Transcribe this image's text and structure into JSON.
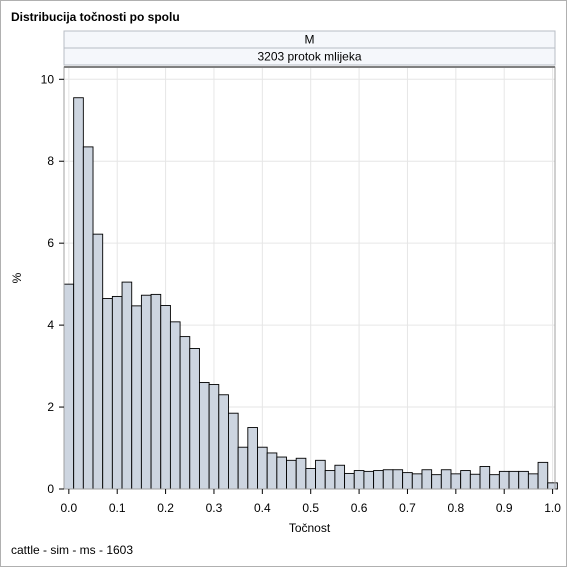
{
  "title": "Distribucija točnosti po spolu",
  "footnote": "cattle - sim - ms - 1603",
  "colors": {
    "bar_fill": "#cdd5e0",
    "bar_stroke": "#000000",
    "grid": "#e6e6e6",
    "strip_fill": "#f5f7fb",
    "frame": "#a0a0a0"
  },
  "chart_data": {
    "type": "bar",
    "panel_labels": [
      "M",
      "3203 protok mlijeka"
    ],
    "xlabel": "Točnost",
    "ylabel": "%",
    "xlim": [
      -0.01,
      1.005
    ],
    "ylim": [
      0,
      10.3
    ],
    "xticks": [
      "0.0",
      "0.1",
      "0.2",
      "0.3",
      "0.4",
      "0.5",
      "0.6",
      "0.7",
      "0.8",
      "0.9",
      "1.0"
    ],
    "xtick_values": [
      0.0,
      0.1,
      0.2,
      0.3,
      0.4,
      0.5,
      0.6,
      0.7,
      0.8,
      0.9,
      1.0
    ],
    "yticks": [
      "0",
      "2",
      "4",
      "6",
      "8",
      "10"
    ],
    "ytick_values": [
      0,
      2,
      4,
      6,
      8,
      10
    ],
    "grid": true,
    "bin_width": 0.02,
    "bin_start": -0.01,
    "values": [
      5.0,
      9.55,
      8.35,
      6.22,
      4.65,
      4.7,
      5.05,
      4.47,
      4.73,
      4.75,
      4.48,
      4.08,
      3.72,
      3.43,
      2.6,
      2.55,
      2.3,
      1.85,
      1.02,
      1.5,
      1.02,
      0.88,
      0.78,
      0.7,
      0.75,
      0.5,
      0.7,
      0.45,
      0.58,
      0.38,
      0.45,
      0.43,
      0.45,
      0.47,
      0.47,
      0.4,
      0.37,
      0.47,
      0.35,
      0.47,
      0.37,
      0.45,
      0.36,
      0.55,
      0.35,
      0.43,
      0.43,
      0.43,
      0.37,
      0.65,
      0.15
    ]
  }
}
